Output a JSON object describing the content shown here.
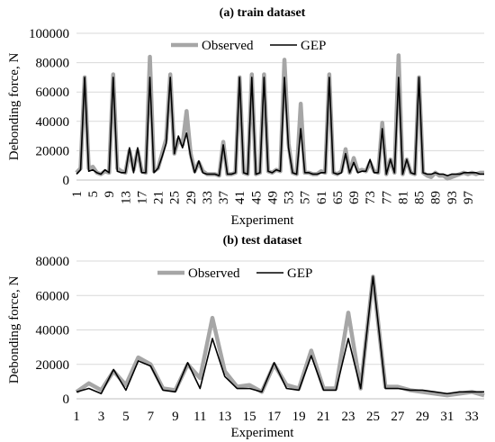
{
  "chart_data": [
    {
      "type": "line",
      "title": "(a) train dataset",
      "xlabel": "Experiment",
      "ylabel": "Debonding force, N",
      "ylim": [
        0,
        100000
      ],
      "yticks": [
        0,
        20000,
        40000,
        60000,
        80000,
        100000
      ],
      "xtick_labels": [
        "1",
        "5",
        "9",
        "13",
        "17",
        "21",
        "25",
        "29",
        "33",
        "37",
        "41",
        "45",
        "49",
        "53",
        "57",
        "61",
        "65",
        "69",
        "73",
        "77",
        "81",
        "85",
        "89",
        "93",
        "97"
      ],
      "xtick_positions": [
        1,
        5,
        9,
        13,
        17,
        21,
        25,
        29,
        33,
        37,
        41,
        45,
        49,
        53,
        57,
        61,
        65,
        69,
        73,
        77,
        81,
        85,
        89,
        93,
        97
      ],
      "x_count": 101,
      "grid": "horizontal",
      "legend": "top-center",
      "series": [
        {
          "name": "Observed",
          "color": "#a6a6a6",
          "values": [
            5000,
            8000,
            70000,
            8000,
            9000,
            5000,
            4000,
            6000,
            5000,
            72000,
            8000,
            6000,
            5000,
            20000,
            7000,
            20000,
            6000,
            5000,
            84000,
            6000,
            8000,
            18000,
            28000,
            72000,
            18000,
            28000,
            24000,
            47000,
            18000,
            6000,
            12000,
            6000,
            4000,
            4000,
            4000,
            3000,
            26000,
            4000,
            4000,
            5000,
            70000,
            5000,
            4000,
            72000,
            4000,
            5000,
            72000,
            6000,
            5000,
            7000,
            6000,
            82000,
            25000,
            5000,
            4000,
            52000,
            5000,
            5000,
            4000,
            4000,
            6000,
            5000,
            72000,
            5000,
            4000,
            6000,
            21000,
            5000,
            15000,
            6000,
            7000,
            6000,
            12000,
            6000,
            5000,
            39000,
            4000,
            14000,
            5000,
            85000,
            4000,
            14000,
            5000,
            4000,
            70000,
            5000,
            3000,
            2000,
            5000,
            3000,
            3000,
            1000,
            2000,
            3000,
            4000,
            5000,
            4000,
            5000,
            4000,
            5000,
            5000
          ],
          "values_note": ""
        },
        {
          "name": "GEP",
          "color": "#000000",
          "values": [
            4000,
            7000,
            70000,
            6000,
            7000,
            5000,
            4000,
            7000,
            5000,
            70000,
            6000,
            5000,
            5000,
            22000,
            5000,
            22000,
            5000,
            5000,
            70000,
            5000,
            8000,
            16000,
            25000,
            70000,
            18000,
            30000,
            22000,
            32000,
            16000,
            5000,
            13000,
            5000,
            4000,
            4000,
            4000,
            3000,
            24000,
            4000,
            4000,
            5000,
            70000,
            5000,
            4000,
            70000,
            4000,
            5000,
            70000,
            6000,
            5000,
            7000,
            6000,
            70000,
            22000,
            5000,
            4000,
            35000,
            5000,
            5000,
            4000,
            4000,
            5000,
            5000,
            70000,
            5000,
            4000,
            5000,
            18000,
            5000,
            12000,
            5000,
            6000,
            6000,
            14000,
            5000,
            5000,
            35000,
            4000,
            14000,
            5000,
            70000,
            4000,
            14000,
            5000,
            4000,
            70000,
            5000,
            4000,
            4000,
            5000,
            4000,
            4000,
            3000,
            4000,
            4000,
            4000,
            5000,
            5000,
            5000,
            5000,
            4000,
            4000
          ]
        }
      ]
    },
    {
      "type": "line",
      "title": "(b) test dataset",
      "xlabel": "Experiment",
      "ylabel": "Debonding force, N",
      "ylim": [
        0,
        80000
      ],
      "yticks": [
        0,
        20000,
        40000,
        60000,
        80000
      ],
      "xtick_labels": [
        "1",
        "3",
        "5",
        "7",
        "9",
        "11",
        "13",
        "15",
        "17",
        "19",
        "21",
        "23",
        "25",
        "27",
        "29",
        "31",
        "33"
      ],
      "xtick_positions": [
        1,
        3,
        5,
        7,
        9,
        11,
        13,
        15,
        17,
        19,
        21,
        23,
        25,
        27,
        29,
        31,
        33
      ],
      "x_count": 34,
      "grid": "horizontal",
      "legend": "top-center",
      "series": [
        {
          "name": "Observed",
          "color": "#a6a6a6",
          "values": [
            4000,
            9000,
            5000,
            16000,
            8000,
            24000,
            20000,
            6000,
            5000,
            20000,
            12000,
            47000,
            16000,
            7000,
            8000,
            4000,
            20000,
            8000,
            6000,
            28000,
            6000,
            6000,
            50000,
            6000,
            71000,
            7000,
            7000,
            5000,
            4000,
            3000,
            2000,
            3000,
            4000,
            2000
          ]
        },
        {
          "name": "GEP",
          "color": "#000000",
          "values": [
            4000,
            6000,
            3000,
            17000,
            5000,
            22000,
            19000,
            5000,
            4000,
            21000,
            6000,
            35000,
            13000,
            6000,
            6000,
            4000,
            21000,
            6000,
            5000,
            25000,
            5000,
            5000,
            35000,
            6000,
            71000,
            6000,
            6000,
            5000,
            5000,
            4000,
            3000,
            4000,
            4000,
            4000
          ]
        }
      ]
    }
  ]
}
